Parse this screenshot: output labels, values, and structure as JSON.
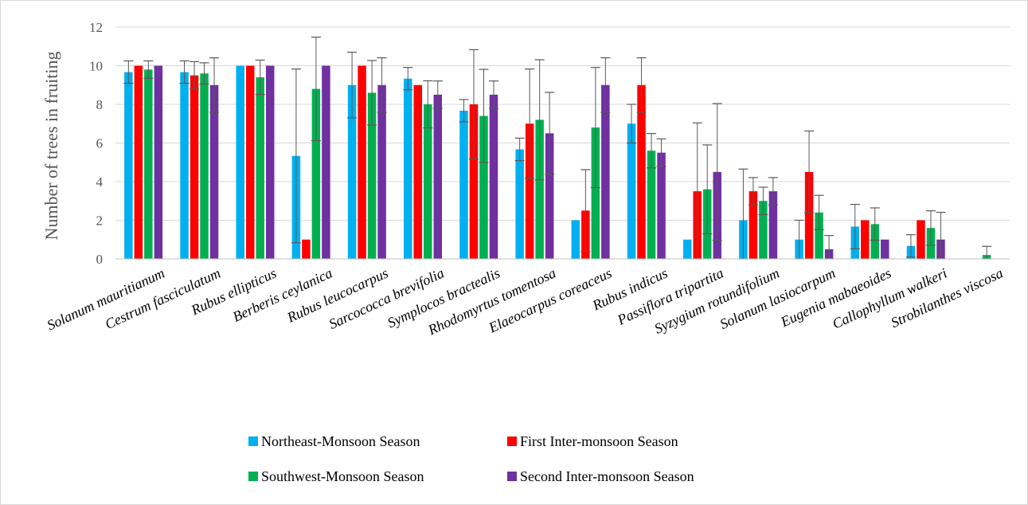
{
  "chart_data": {
    "type": "bar",
    "ylabel": "Number of trees in fruiting",
    "ylim": [
      0,
      12
    ],
    "yticks": [
      0,
      2,
      4,
      6,
      8,
      10,
      12
    ],
    "grid": true,
    "legend_position": "bottom",
    "categories": [
      "Solanum mauritianum",
      "Cestrum fasciculatum",
      "Rubus ellipticus",
      "Berberis ceylanica",
      "Rubus leucocarpus",
      "Sarcococca brevifolia",
      "Symplocos bractealis",
      "Rhodomyrtus tomentosa",
      "Elaeocarpus coreaceus",
      "Rubus indicus",
      "Passiflora tripartita",
      "Syzygium rotundifolium",
      "Solanum lasiocarpum",
      "Eugenia mabaeoides",
      "Callophyllum walkeri",
      "Strobilanthes viscosa"
    ],
    "series": [
      {
        "name": "Northeast-Monsoon Season",
        "color": "#00B0F0",
        "values": [
          9.67,
          9.67,
          10,
          5.33,
          9,
          9.33,
          7.67,
          5.67,
          2,
          7,
          1,
          2,
          1,
          1.67,
          0.67,
          0
        ],
        "errors": [
          0.58,
          0.58,
          0,
          4.5,
          1.7,
          0.58,
          0.58,
          0.58,
          0,
          1,
          0,
          2.65,
          1,
          1.15,
          0.58,
          0
        ]
      },
      {
        "name": "First Inter-monsoon Season",
        "color": "#FF0000",
        "values": [
          10,
          9.5,
          10,
          1,
          10,
          9,
          8,
          7,
          2.5,
          9,
          3.5,
          3.5,
          4.5,
          2,
          2,
          0
        ],
        "errors": [
          0,
          0.71,
          0,
          0,
          0,
          0,
          2.83,
          2.83,
          2.12,
          1.41,
          3.54,
          0.71,
          2.12,
          0,
          0,
          0
        ]
      },
      {
        "name": "Southwest-Monsoon Season",
        "color": "#00B050",
        "values": [
          9.8,
          9.6,
          9.4,
          8.8,
          8.6,
          8,
          7.4,
          7.2,
          6.8,
          5.6,
          3.6,
          3,
          2.4,
          1.8,
          1.6,
          0.2
        ],
        "errors": [
          0.45,
          0.55,
          0.89,
          2.68,
          1.67,
          1.22,
          2.41,
          3.11,
          3.11,
          0.89,
          2.3,
          0.71,
          0.89,
          0.84,
          0.89,
          0.45
        ]
      },
      {
        "name": "Second Inter-monsoon Season",
        "color": "#7030A0",
        "values": [
          10,
          9,
          10,
          10,
          9,
          8.5,
          8.5,
          6.5,
          9,
          5.5,
          4.5,
          3.5,
          0.5,
          1,
          1,
          0
        ],
        "errors": [
          0,
          1.41,
          0,
          0,
          1.41,
          0.71,
          0.71,
          2.12,
          1.41,
          0.71,
          3.54,
          0.71,
          0.71,
          0,
          1.41,
          0
        ]
      }
    ]
  }
}
